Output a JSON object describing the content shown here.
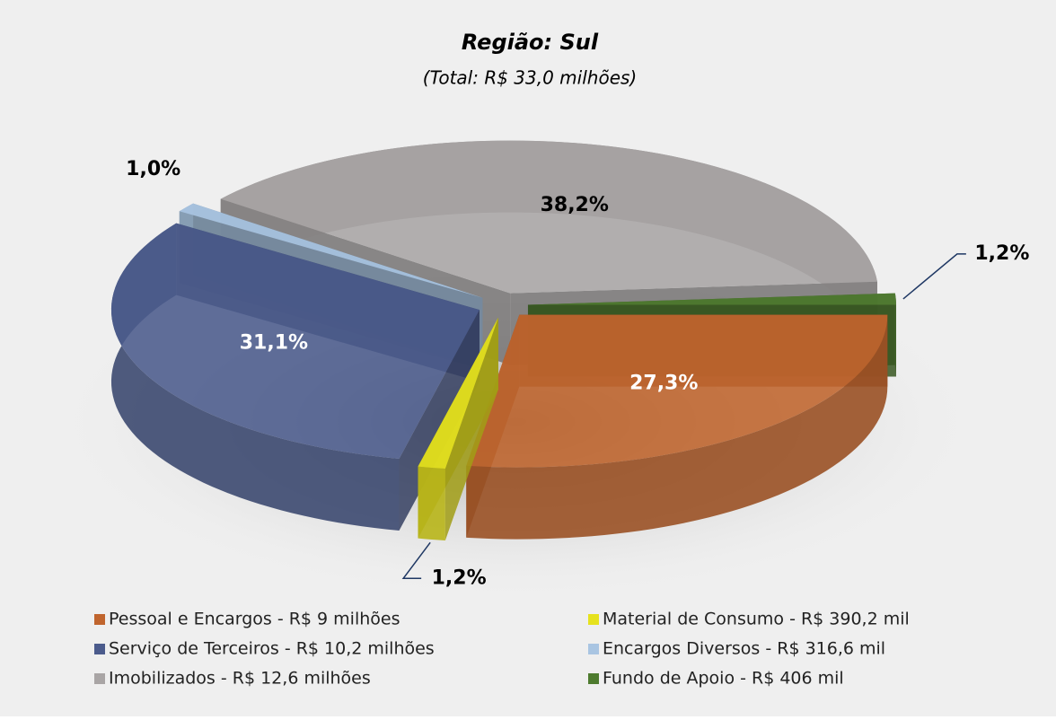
{
  "chart_data": {
    "type": "pie",
    "title": "Região: Sul",
    "subtitle": "(Total: R$ 33,0 milhões)",
    "categories": [
      "Pessoal e Encargos - R$ 9 milhões",
      "Material de Consumo - R$ 390,2 mil",
      "Serviço de Terceiros - R$ 10,2 milhões",
      "Encargos Diversos - R$ 316,6 mil",
      "Imobilizados - R$ 12,6 milhões",
      "Fundo de Apoio - R$ 406 mil"
    ],
    "values": [
      27.3,
      1.2,
      31.1,
      1.0,
      38.2,
      1.2
    ],
    "value_labels": [
      "27,3%",
      "1,2%",
      "31,1%",
      "1,0%",
      "38,2%",
      "1,2%"
    ],
    "colors": [
      "#c0652e",
      "#e6e21e",
      "#4b5b8c",
      "#a9c5e2",
      "#a9a5a5",
      "#4e7b2f"
    ],
    "legend": "bottom"
  }
}
